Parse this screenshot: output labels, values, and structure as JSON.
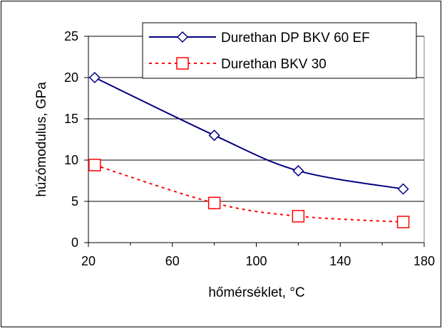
{
  "chart_data": {
    "type": "line",
    "title": "",
    "xlabel": "hőmérséklet, °C",
    "ylabel": "húzómodulus, GPa",
    "xlim": [
      20,
      180
    ],
    "ylim": [
      0,
      25
    ],
    "x_ticks": [
      "20",
      "60",
      "100",
      "140",
      "180"
    ],
    "y_ticks": [
      "0",
      "5",
      "10",
      "15",
      "20",
      "25"
    ],
    "grid": "horizontal",
    "legend_position": "top-right",
    "series": [
      {
        "name": "Durethan DP BKV 60 EF",
        "color": "#000080",
        "line_style": "solid",
        "marker": "diamond-open",
        "x": [
          23,
          80,
          120,
          170
        ],
        "y": [
          20,
          13,
          8.7,
          6.5
        ]
      },
      {
        "name": "Durethan BKV 30",
        "color": "#FF0000",
        "line_style": "dotted",
        "marker": "square-open",
        "x": [
          23,
          80,
          120,
          170
        ],
        "y": [
          9.4,
          4.8,
          3.2,
          2.5
        ]
      }
    ]
  }
}
